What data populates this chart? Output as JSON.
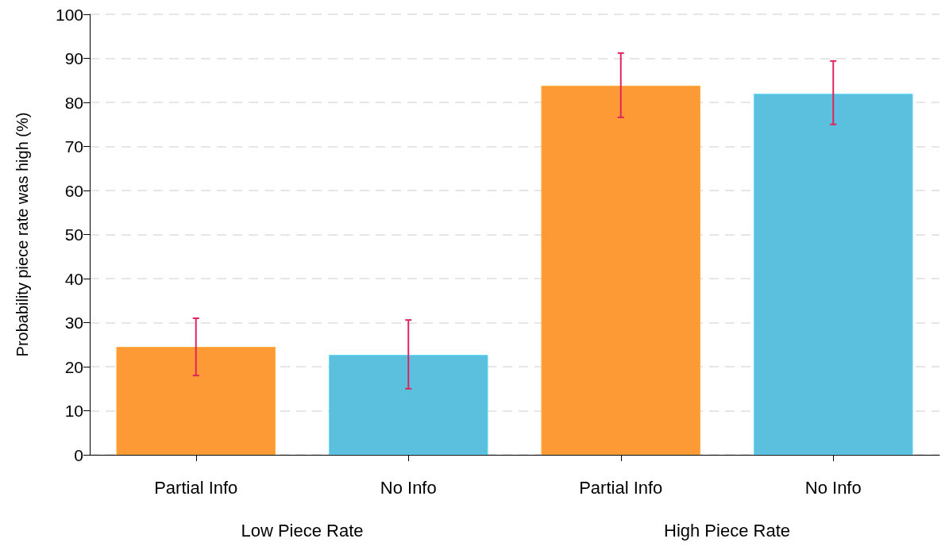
{
  "chart_data": {
    "type": "bar",
    "ylabel": "Probability piece rate was high (%)",
    "categories": [
      "Partial Info",
      "No Info",
      "Partial Info",
      "No Info"
    ],
    "values": [
      24.5,
      22.7,
      83.8,
      82.0
    ],
    "colors": [
      "#fd9a36",
      "#5bbfde",
      "#fd9a36",
      "#5bbfde"
    ],
    "errors": [
      [
        18.0,
        31.0
      ],
      [
        15.0,
        30.6
      ],
      [
        76.6,
        91.2
      ],
      [
        75.0,
        89.4
      ]
    ],
    "ylim": [
      0,
      100
    ],
    "yticks": [
      0,
      10,
      20,
      30,
      40,
      50,
      60,
      70,
      80,
      90,
      100
    ],
    "grid": "y",
    "annotations": [
      "Low Piece Rate",
      "High Piece Rate"
    ]
  }
}
